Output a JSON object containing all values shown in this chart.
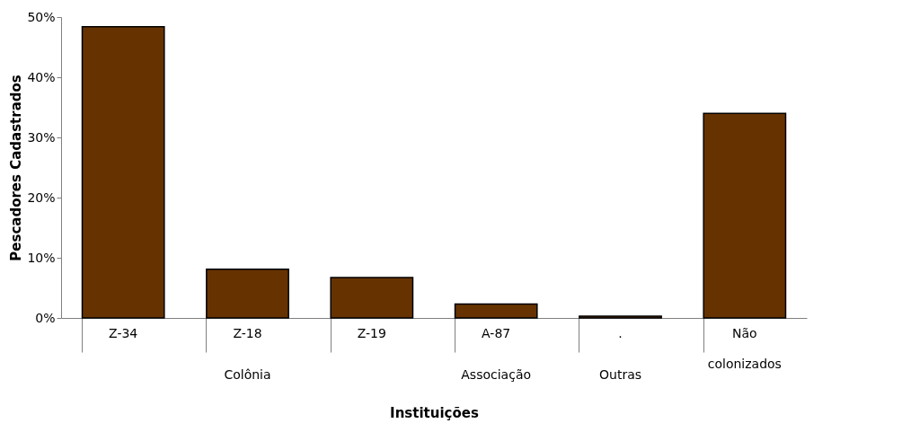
{
  "chart_data": {
    "type": "bar",
    "xlabel": "Instituições",
    "ylabel": "Pescadores Cadastrados",
    "categories": [
      "Z-34",
      "Z-18",
      "Z-19",
      "A-87",
      ".",
      "Não colonizados"
    ],
    "values": [
      48.4,
      8.1,
      6.7,
      2.3,
      0.3,
      34.0
    ],
    "color": "#663300",
    "ylim": [
      0,
      50
    ],
    "yticks": [
      {
        "value": 0,
        "label": "0%"
      },
      {
        "value": 10,
        "label": "10%"
      },
      {
        "value": 20,
        "label": "20%"
      },
      {
        "value": 30,
        "label": "30%"
      },
      {
        "value": 40,
        "label": "40%"
      },
      {
        "value": 50,
        "label": "50%"
      }
    ],
    "grid": false,
    "annotations": [
      "Colônia",
      "Associação",
      "Outras"
    ]
  }
}
